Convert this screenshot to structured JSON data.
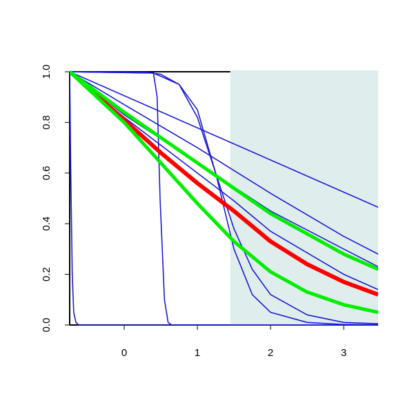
{
  "chart_data": {
    "type": "line",
    "xlim": [
      -0.745,
      3.47
    ],
    "ylim": [
      0,
      1
    ],
    "xticks": [
      0,
      1,
      2,
      3
    ],
    "yticks": [
      {
        "value": 0,
        "label": "0.0"
      },
      {
        "value": 0.2,
        "label": "0.2"
      },
      {
        "value": 0.4,
        "label": "0.4"
      },
      {
        "value": 0.6,
        "label": "0.6"
      },
      {
        "value": 0.8,
        "label": "0.8"
      },
      {
        "value": 1,
        "label": "1.0"
      }
    ],
    "shade": {
      "x": [
        1.45,
        3.47
      ],
      "color": "#e0eded"
    },
    "series": [
      {
        "color": "#1a1ad6",
        "width": 1.6,
        "x": [
          -0.745,
          3.47
        ],
        "values": [
          1,
          0.465
        ]
      },
      {
        "color": "#1a1ad6",
        "width": 1.6,
        "x": [
          -0.745,
          -0.73,
          -0.71,
          -0.69,
          -0.66,
          -0.62,
          3.47
        ],
        "values": [
          1,
          0.6,
          0.2,
          0.05,
          0.01,
          0,
          0
        ]
      },
      {
        "color": "#1a1ad6",
        "width": 1.6,
        "x": [
          -0.745,
          0.4,
          0.45,
          0.49,
          0.55,
          0.6,
          0.65,
          3.47
        ],
        "values": [
          1,
          0.995,
          0.9,
          0.5,
          0.1,
          0.01,
          0,
          0
        ]
      },
      {
        "color": "#1a1ad6",
        "width": 1.6,
        "x": [
          -0.745,
          0.4,
          0.75,
          1,
          1.25,
          1.5,
          1.75,
          2,
          2.5,
          3,
          3.47
        ],
        "values": [
          1,
          0.995,
          0.95,
          0.85,
          0.6,
          0.3,
          0.12,
          0.05,
          0.01,
          0.002,
          0.001
        ]
      },
      {
        "color": "#1a1ad6",
        "width": 1.6,
        "x": [
          -0.745,
          0.3,
          0.5,
          0.75,
          1,
          1.25,
          1.5,
          1.75,
          2,
          2.5,
          3,
          3.47
        ],
        "values": [
          1,
          0.998,
          0.99,
          0.95,
          0.82,
          0.6,
          0.38,
          0.22,
          0.12,
          0.04,
          0.01,
          0.005
        ]
      },
      {
        "color": "#1a1ad6",
        "width": 1.6,
        "x": [
          -0.745,
          0,
          1,
          2,
          3,
          3.47
        ],
        "values": [
          1,
          0.87,
          0.7,
          0.52,
          0.35,
          0.28
        ]
      },
      {
        "color": "#1a1ad6",
        "width": 1.6,
        "x": [
          -0.745,
          0,
          1,
          2,
          3,
          3.47
        ],
        "values": [
          1,
          0.83,
          0.64,
          0.45,
          0.3,
          0.23
        ]
      },
      {
        "color": "#1a1ad6",
        "width": 1.6,
        "x": [
          -0.745,
          0,
          1,
          1.5,
          2,
          3,
          3.47
        ],
        "values": [
          1,
          0.82,
          0.6,
          0.49,
          0.37,
          0.2,
          0.14
        ]
      },
      {
        "color": "#ff0000",
        "width": 6,
        "x": [
          -0.47,
          0,
          0.5,
          1,
          1.5,
          2,
          2.5,
          3,
          3.47
        ],
        "values": [
          0.93,
          0.81,
          0.68,
          0.56,
          0.45,
          0.33,
          0.24,
          0.17,
          0.12
        ]
      },
      {
        "color": "#00ee00",
        "width": 5,
        "x": [
          -0.745,
          0,
          0.5,
          1,
          1.5,
          2,
          2.5,
          3,
          3.47
        ],
        "values": [
          1,
          0.84,
          0.74,
          0.64,
          0.54,
          0.44,
          0.36,
          0.28,
          0.22
        ]
      },
      {
        "color": "#00ee00",
        "width": 5,
        "x": [
          -0.745,
          0,
          0.5,
          1,
          1.5,
          2,
          2.5,
          3,
          3.47
        ],
        "values": [
          1,
          0.8,
          0.64,
          0.48,
          0.33,
          0.21,
          0.13,
          0.08,
          0.05
        ]
      }
    ]
  }
}
